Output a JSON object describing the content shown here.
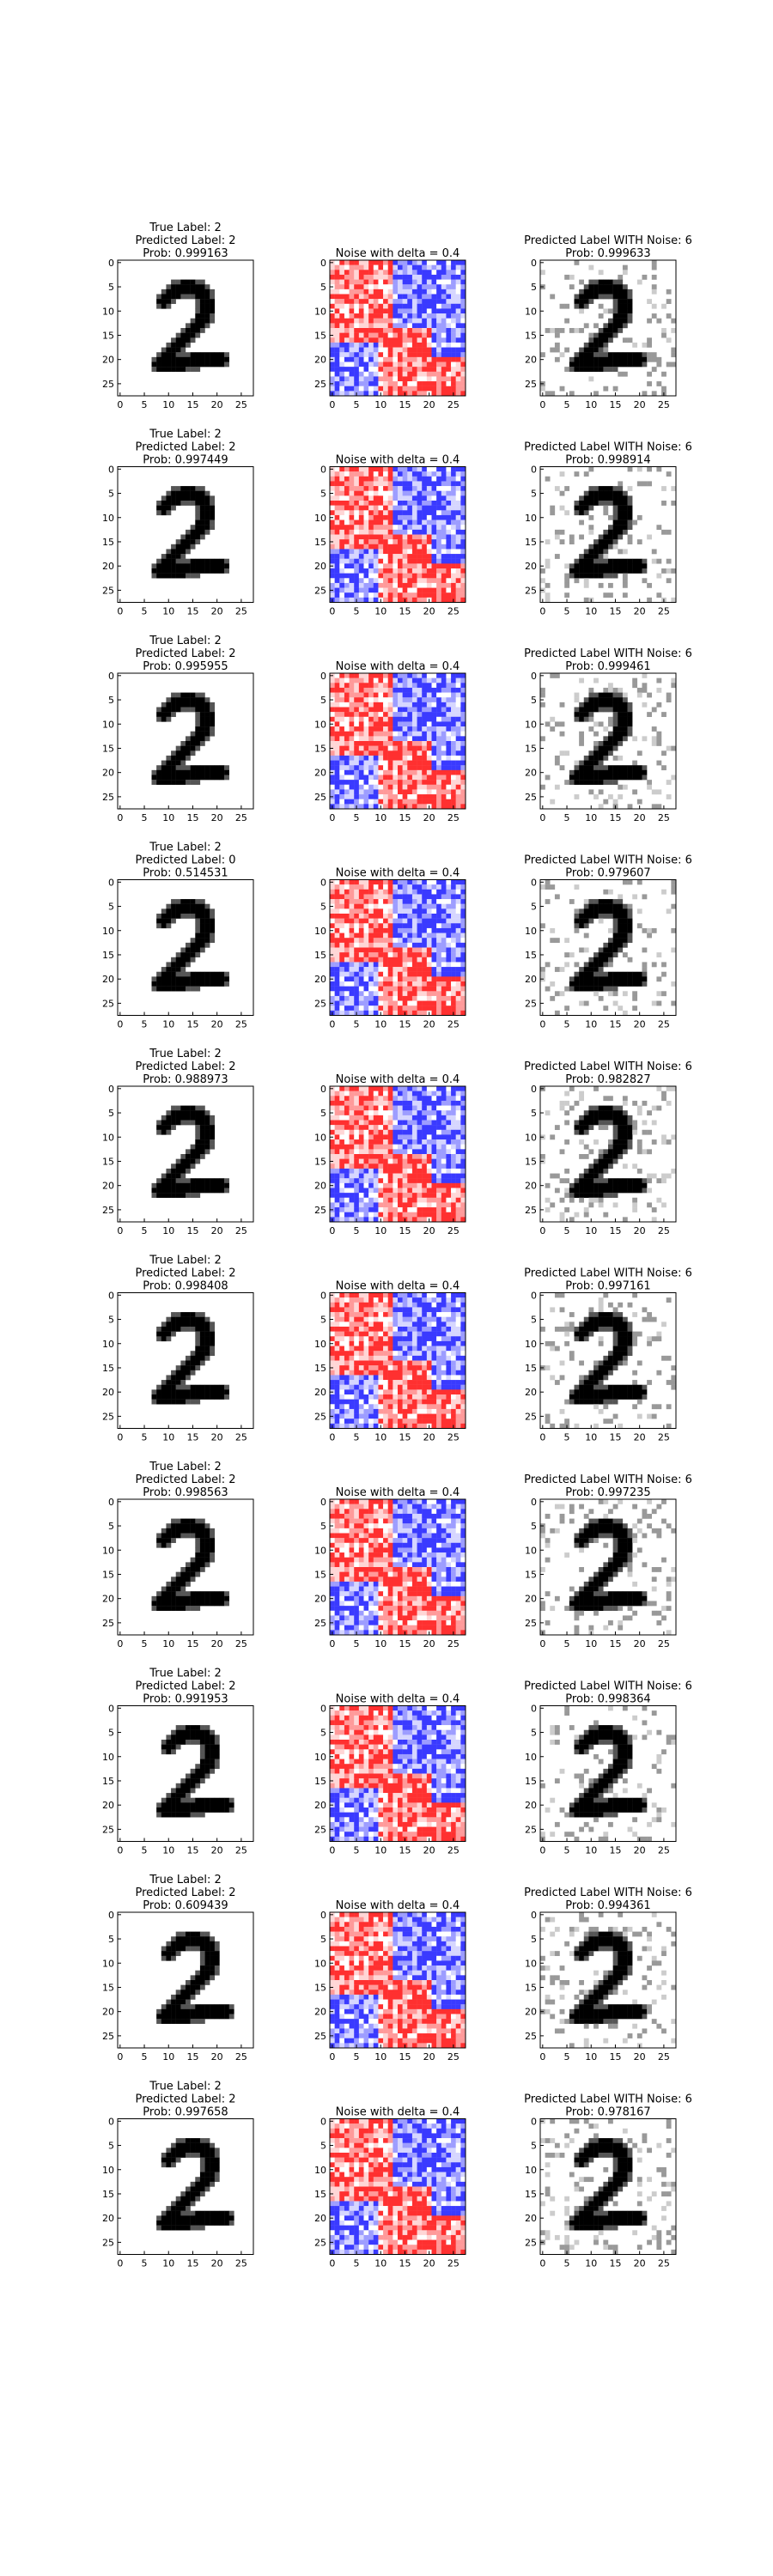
{
  "figure": {
    "noise_title": "Noise with delta = 0.4",
    "noise_label_prefix": "Predicted Label WITH Noise: ",
    "true_label_prefix": "True Label: ",
    "pred_label_prefix": "Predicted Label: ",
    "prob_prefix": "Prob: "
  },
  "chart_data": {
    "type": "heatmap",
    "panel_types": [
      "original digit (grayscale)",
      "noise pattern (red-white-blue)",
      "noisy digit (grayscale)"
    ],
    "axes": {
      "x_ticks": [
        "0",
        "5",
        "10",
        "15",
        "20",
        "25"
      ],
      "y_ticks": [
        "0",
        "5",
        "10",
        "15",
        "20",
        "25"
      ],
      "xlim": [
        -0.5,
        27.5
      ],
      "ylim": [
        27.5,
        -0.5
      ],
      "grid": false
    },
    "colors": {
      "digit": "#000000",
      "noise_positive": "#ff0000",
      "noise_negative": "#0000ff",
      "noisy_gray": "#999999"
    },
    "rows": [
      {
        "true_label": "2",
        "pred_label": "2",
        "prob": "0.999163",
        "noise_pred": "6",
        "noise_prob": "0.999633"
      },
      {
        "true_label": "2",
        "pred_label": "2",
        "prob": "0.997449",
        "noise_pred": "6",
        "noise_prob": "0.998914"
      },
      {
        "true_label": "2",
        "pred_label": "2",
        "prob": "0.995955",
        "noise_pred": "6",
        "noise_prob": "0.999461"
      },
      {
        "true_label": "2",
        "pred_label": "0",
        "prob": "0.514531",
        "noise_pred": "6",
        "noise_prob": "0.979607"
      },
      {
        "true_label": "2",
        "pred_label": "2",
        "prob": "0.988973",
        "noise_pred": "6",
        "noise_prob": "0.982827"
      },
      {
        "true_label": "2",
        "pred_label": "2",
        "prob": "0.998408",
        "noise_pred": "6",
        "noise_prob": "0.997161"
      },
      {
        "true_label": "2",
        "pred_label": "2",
        "prob": "0.998563",
        "noise_pred": "6",
        "noise_prob": "0.997235"
      },
      {
        "true_label": "2",
        "pred_label": "2",
        "prob": "0.991953",
        "noise_pred": "6",
        "noise_prob": "0.998364"
      },
      {
        "true_label": "2",
        "pred_label": "2",
        "prob": "0.609439",
        "noise_pred": "6",
        "noise_prob": "0.994361"
      },
      {
        "true_label": "2",
        "pred_label": "2",
        "prob": "0.997658",
        "noise_pred": "6",
        "noise_prob": "0.978167"
      }
    ]
  }
}
